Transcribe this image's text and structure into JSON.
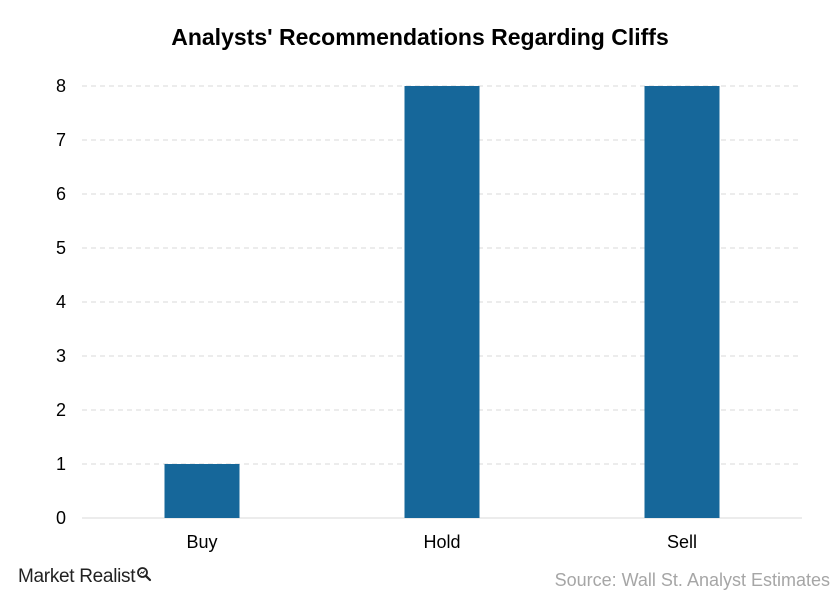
{
  "chart_data": {
    "type": "bar",
    "title": "Analysts' Recommendations Regarding Cliffs",
    "categories": [
      "Buy",
      "Hold",
      "Sell"
    ],
    "values": [
      1,
      8,
      8
    ],
    "xlabel": "",
    "ylabel": "",
    "ylim": [
      0,
      8
    ],
    "yticks": [
      0,
      1,
      2,
      3,
      4,
      5,
      6,
      7,
      8
    ],
    "grid": true,
    "bar_color": "#16679a",
    "grid_color": "#d9d9d9"
  },
  "branding": {
    "logo_text": "Market Realist"
  },
  "source": "Source: Wall St. Analyst Estimates"
}
